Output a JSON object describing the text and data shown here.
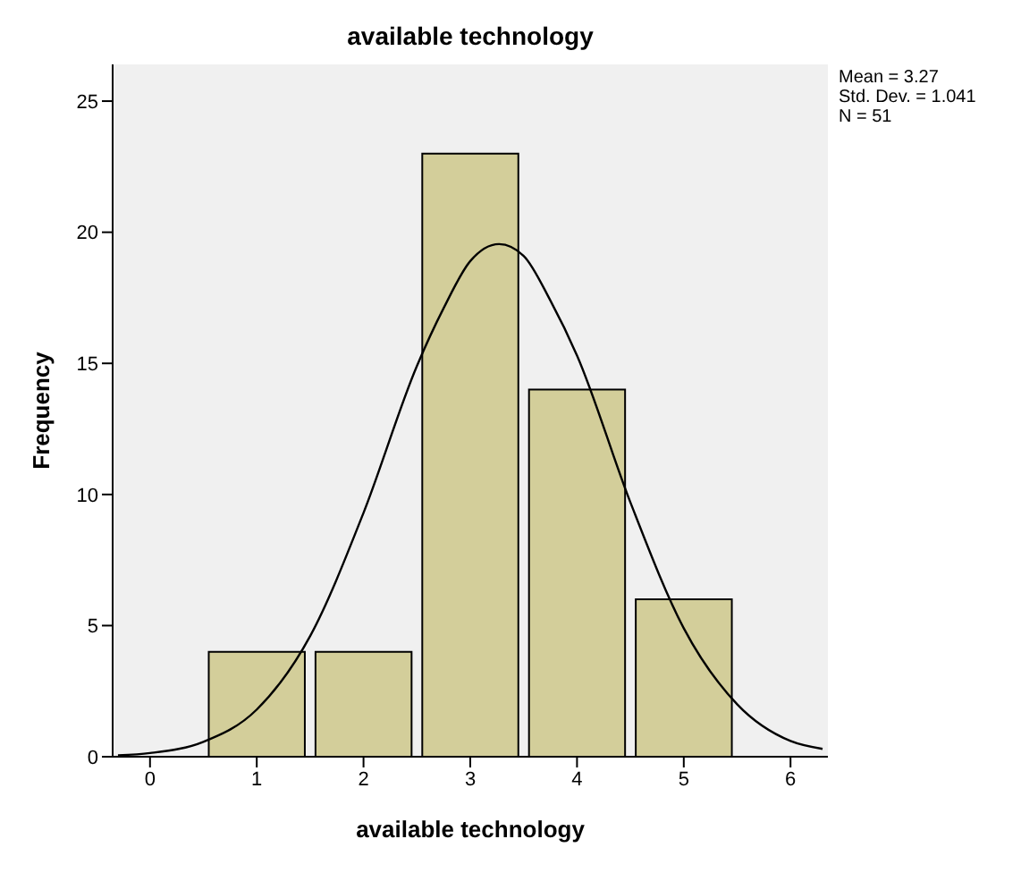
{
  "chart_data": {
    "type": "histogram",
    "title": "available technology",
    "xlabel": "available technology",
    "ylabel": "Frequency",
    "bins": [
      0.5,
      1.5,
      2.5,
      3.5,
      4.5,
      5.5
    ],
    "values": [
      4,
      4,
      23,
      14,
      6
    ],
    "color": "#d3ce9a",
    "series": [
      {
        "type": "line",
        "color": "#000000",
        "x": [
          -0.3,
          0,
          0.5,
          1,
          1.5,
          2,
          2.5,
          2.75,
          3,
          3.27,
          3.5,
          3.75,
          4,
          4.5,
          5,
          5.5,
          6,
          6.3
        ],
        "values": [
          0.05,
          0.14,
          0.57,
          1.8,
          4.6,
          9.3,
          14.9,
          17.1,
          18.9,
          19.55,
          19.1,
          17.4,
          15.3,
          9.7,
          4.9,
          2.0,
          0.6,
          0.3
        ]
      }
    ],
    "xlim": [
      -0.35,
      6.35
    ],
    "xticks": [
      0,
      1,
      2,
      3,
      4,
      5,
      6
    ],
    "ylim": [
      0,
      26.4
    ],
    "yticks": [
      0,
      5,
      10,
      15,
      20,
      25
    ],
    "grid": false,
    "marker": "none",
    "line_style": "solid",
    "legend": false,
    "annotations": [
      "Mean = 3.27",
      "Std. Dev. = 1.041",
      "N = 51"
    ]
  }
}
